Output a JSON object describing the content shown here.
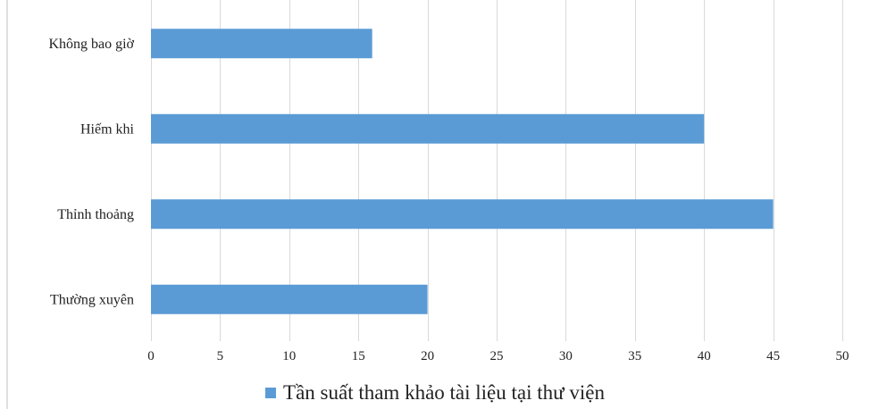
{
  "chart_data": {
    "type": "bar",
    "orientation": "horizontal",
    "categories": [
      "Thường xuyên",
      "Thỉnh thoảng",
      "Hiếm khi",
      "Không bao giờ"
    ],
    "series": [
      {
        "name": "Tần suất tham khảo tài liệu tại thư viện",
        "values": [
          20,
          45,
          40,
          16
        ],
        "color": "#5B9BD5"
      }
    ],
    "xlim": [
      0,
      50
    ],
    "xticks": [
      0,
      5,
      10,
      15,
      20,
      25,
      30,
      35,
      40,
      45,
      50
    ],
    "grid": "vertical",
    "legend": "bottom-center",
    "title": "",
    "xlabel": "",
    "ylabel": ""
  },
  "colors": {
    "grid": "#d9d9d9",
    "axis": "#bfbfbf",
    "bar": "#5B9BD5"
  }
}
